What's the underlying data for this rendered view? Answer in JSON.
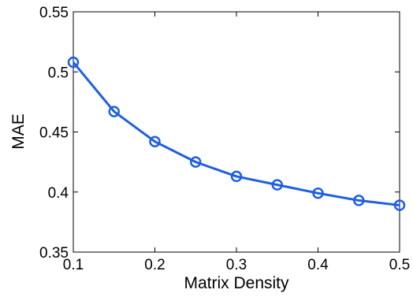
{
  "chart_data": {
    "type": "line",
    "xlabel": "Matrix Density",
    "ylabel": "MAE",
    "xlim": [
      0.1,
      0.5
    ],
    "ylim": [
      0.35,
      0.55
    ],
    "x_ticks": [
      "0.1",
      "0.2",
      "0.3",
      "0.4",
      "0.5"
    ],
    "y_ticks": [
      "0.35",
      "0.4",
      "0.45",
      "0.5",
      "0.55"
    ],
    "grid": false,
    "legend": "none",
    "series": [
      {
        "color": "#1f5fe0",
        "marker": "circle-open",
        "x": [
          0.1,
          0.15,
          0.2,
          0.25,
          0.3,
          0.35,
          0.4,
          0.45,
          0.5
        ],
        "y": [
          0.508,
          0.467,
          0.442,
          0.425,
          0.413,
          0.406,
          0.399,
          0.393,
          0.389
        ]
      }
    ]
  }
}
